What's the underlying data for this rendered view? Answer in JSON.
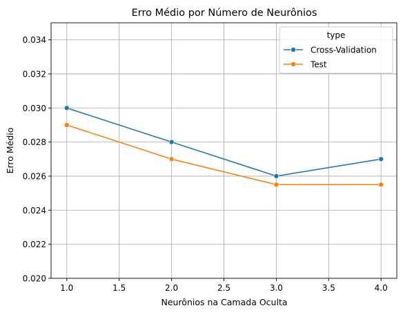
{
  "chart_data": {
    "type": "line",
    "title": "Erro Médio por Número de Neurônios",
    "xlabel": "Neurônios na Camada Oculta",
    "ylabel": "Erro Médio",
    "xlim": [
      0.85,
      4.15
    ],
    "ylim": [
      0.02,
      0.035
    ],
    "xticks": [
      1.0,
      1.5,
      2.0,
      2.5,
      3.0,
      3.5,
      4.0
    ],
    "xtick_labels": [
      "1.0",
      "1.5",
      "2.0",
      "2.5",
      "3.0",
      "3.5",
      "4.0"
    ],
    "yticks": [
      0.02,
      0.022,
      0.024,
      0.026,
      0.028,
      0.03,
      0.032,
      0.034
    ],
    "ytick_labels": [
      "0.020",
      "0.022",
      "0.024",
      "0.026",
      "0.028",
      "0.030",
      "0.032",
      "0.034"
    ],
    "grid": true,
    "legend": {
      "title": "type",
      "placement": "top-right"
    },
    "series": [
      {
        "name": "Cross-Validation",
        "color": "#1f77b4",
        "marker": "circle",
        "x": [
          1,
          2,
          3,
          4
        ],
        "y": [
          0.03,
          0.028,
          0.026,
          0.027
        ]
      },
      {
        "name": "Test",
        "color": "#ff7f0e",
        "marker": "circle",
        "x": [
          1,
          2,
          3,
          4
        ],
        "y": [
          0.029,
          0.027,
          0.0255,
          0.0255
        ]
      }
    ]
  }
}
